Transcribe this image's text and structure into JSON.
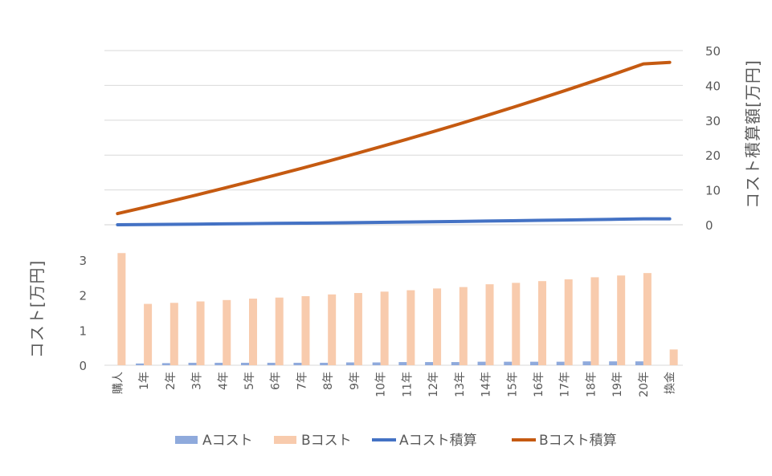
{
  "chart_data": {
    "type": "bar",
    "categories": [
      "購人",
      "1年",
      "2年",
      "3年",
      "4年",
      "5年",
      "6年",
      "7年",
      "8年",
      "9年",
      "10年",
      "11年",
      "12年",
      "13年",
      "14年",
      "15年",
      "16年",
      "17年",
      "18年",
      "19年",
      "20年",
      "換金"
    ],
    "bar_panel": {
      "ylabel": "コスト[万円]",
      "ylim": [
        0,
        3
      ],
      "yticks": [
        0,
        1,
        2,
        3
      ],
      "ytick_labels": [
        "0",
        "1",
        "2",
        "3"
      ],
      "grid": false
    },
    "line_panel": {
      "ylabel": "コスト積算額[万円]",
      "ylim": [
        0,
        50
      ],
      "yticks": [
        0,
        10,
        20,
        30,
        40,
        50
      ],
      "ytick_labels": [
        "0",
        "10",
        "20",
        "30",
        "40",
        "50"
      ],
      "axis_side": "right",
      "grid": true
    },
    "series": [
      {
        "name": "Aコスト",
        "kind": "bar",
        "panel": "bar",
        "color": "#8faadc",
        "values": [
          0.0,
          0.05,
          0.06,
          0.07,
          0.07,
          0.07,
          0.07,
          0.07,
          0.07,
          0.08,
          0.08,
          0.09,
          0.09,
          0.09,
          0.1,
          0.1,
          0.1,
          0.1,
          0.11,
          0.11,
          0.11,
          0.0
        ]
      },
      {
        "name": "Bコスト",
        "kind": "bar",
        "panel": "bar",
        "color": "#f8cbad",
        "values": [
          3.2,
          1.75,
          1.78,
          1.82,
          1.86,
          1.9,
          1.93,
          1.97,
          2.02,
          2.06,
          2.1,
          2.14,
          2.19,
          2.23,
          2.31,
          2.35,
          2.4,
          2.45,
          2.51,
          2.56,
          2.63,
          0.45
        ]
      },
      {
        "name": "Aコスト積算",
        "kind": "line",
        "panel": "line",
        "color": "#4472c4",
        "values": [
          0.0,
          0.05,
          0.11,
          0.18,
          0.25,
          0.32,
          0.39,
          0.46,
          0.53,
          0.61,
          0.69,
          0.78,
          0.87,
          0.96,
          1.06,
          1.16,
          1.26,
          1.36,
          1.47,
          1.58,
          1.69,
          1.69
        ]
      },
      {
        "name": "Bコスト積算",
        "kind": "line",
        "panel": "line",
        "color": "#c55a11",
        "values": [
          3.2,
          4.95,
          6.73,
          8.55,
          10.41,
          12.31,
          14.24,
          16.21,
          18.23,
          20.29,
          22.39,
          24.53,
          26.72,
          28.95,
          31.26,
          33.61,
          36.01,
          38.46,
          40.97,
          43.53,
          46.16,
          46.61
        ]
      }
    ],
    "legend": {
      "position": "bottom"
    }
  }
}
